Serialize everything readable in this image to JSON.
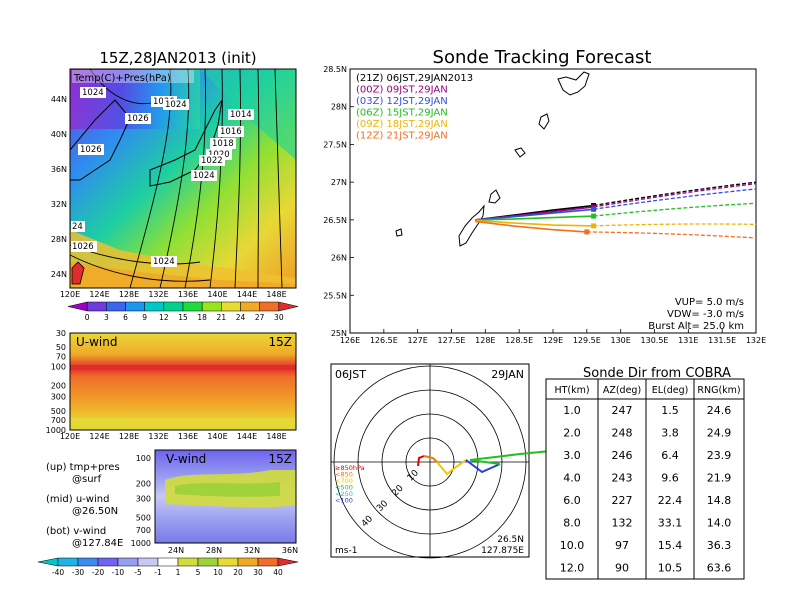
{
  "map_panel": {
    "title": "15Z,28JAN2013 (init)",
    "field_label": "Temp(C)+Pres(hPa)",
    "lat_ticks": [
      "44N",
      "40N",
      "36N",
      "32N",
      "28N",
      "24N"
    ],
    "lon_ticks": [
      "120E",
      "124E",
      "128E",
      "132E",
      "136E",
      "140E",
      "144E",
      "148E"
    ],
    "contour_labels": [
      "1024",
      "1026",
      "1024",
      "1026",
      "1014",
      "1016",
      "1018",
      "1020",
      "1022",
      "1024",
      "1026",
      "24",
      "1026",
      "1024"
    ],
    "colorbar_ticks": [
      "0",
      "3",
      "6",
      "9",
      "12",
      "15",
      "18",
      "21",
      "24",
      "27",
      "30"
    ],
    "colorbar_colors": [
      "#a000c8",
      "#6e3cdc",
      "#3c64f0",
      "#1e96f0",
      "#00c8c8",
      "#00d28c",
      "#1edc3c",
      "#96e61e",
      "#e6dc32",
      "#f0aa28",
      "#f06e28",
      "#e02c2c"
    ]
  },
  "uwind_panel": {
    "title": "U-wind",
    "time": "15Z",
    "y_ticks": [
      "30",
      "50",
      "70",
      "100",
      "200",
      "300",
      "500",
      "700",
      "1000"
    ],
    "x_ticks": [
      "120E",
      "124E",
      "128E",
      "132E",
      "136E",
      "140E",
      "144E",
      "148E"
    ]
  },
  "vwind_panel": {
    "title": "V-wind",
    "time": "15Z",
    "y_ticks": [
      "100",
      "200",
      "300",
      "500",
      "700",
      "1000"
    ],
    "x_ticks": [
      "24N",
      "28N",
      "32N",
      "36N"
    ],
    "colorbar_ticks": [
      "-40",
      "-30",
      "-20",
      "-10",
      "-5",
      "-1",
      "1",
      "5",
      "10",
      "20",
      "30",
      "40"
    ],
    "colorbar_colors": [
      "#00c8c8",
      "#1eb4e6",
      "#3c8cf0",
      "#6e64f0",
      "#96a0f0",
      "#c8c8f0",
      "#ffffff",
      "#d2dc3c",
      "#a0d23c",
      "#e6dc32",
      "#f0aa28",
      "#f06e28",
      "#e02c2c"
    ]
  },
  "legend_notes": {
    "up_line1": "(up) tmp+pres",
    "up_line2": "@surf",
    "mid_line1": "(mid) u-wind",
    "mid_line2": "@26.50N",
    "bot_line1": "(bot) v-wind",
    "bot_line2": "@127.84E"
  },
  "forecast_panel": {
    "title": "Sonde Tracking Forecast",
    "vup": "VUP= 5.0 m/s",
    "vdw": "VDW= -3.0 m/s",
    "burst": "Burst Alt= 25.0 km"
  },
  "polar_panel": {
    "time_label": "06JST",
    "date_label": "29JAN",
    "ring_labels": [
      "10",
      "20",
      "30",
      "40"
    ],
    "lat": "26.5N",
    "lon": "127.875E",
    "unit": "ms-1",
    "level_legend": [
      {
        "label": "≥850hPa",
        "color": "#e00000"
      },
      {
        "label": "<850",
        "color": "#f07800"
      },
      {
        "label": "<700",
        "color": "#f0c800"
      },
      {
        "label": "<500",
        "color": "#20c020"
      },
      {
        "label": "<250",
        "color": "#20c0c0"
      },
      {
        "label": "<100",
        "color": "#2040e0"
      }
    ]
  },
  "table": {
    "title": "Sonde Dir from COBRA",
    "headers": [
      "HT(km)",
      "AZ(deg)",
      "EL(deg)",
      "RNG(km)"
    ],
    "rows": [
      [
        "1.0",
        "247",
        "1.5",
        "24.6"
      ],
      [
        "2.0",
        "248",
        "3.8",
        "24.9"
      ],
      [
        "3.0",
        "246",
        "6.4",
        "23.9"
      ],
      [
        "4.0",
        "243",
        "9.6",
        "21.9"
      ],
      [
        "6.0",
        "227",
        "22.4",
        "14.8"
      ],
      [
        "8.0",
        "132",
        "33.1",
        "14.0"
      ],
      [
        "10.0",
        "97",
        "15.4",
        "36.3"
      ],
      [
        "12.0",
        "90",
        "10.5",
        "63.6"
      ]
    ]
  },
  "chart_data": {
    "type": "line",
    "title": "Sonde Tracking Forecast",
    "xlim": [
      126,
      132
    ],
    "ylim": [
      25,
      28.5
    ],
    "x_ticks": [
      "126E",
      "126.5E",
      "127E",
      "127.5E",
      "128E",
      "128.5E",
      "129E",
      "129.5E",
      "130E",
      "130.5E",
      "131E",
      "131.5E",
      "132E"
    ],
    "y_ticks": [
      "25N",
      "25.5N",
      "26N",
      "26.5N",
      "27N",
      "27.5N",
      "28N",
      "28.5N"
    ],
    "launch_times": [
      {
        "label": "(21Z) 06JST,29JAN2013",
        "color": "#000000"
      },
      {
        "label": "(00Z) 09JST,29JAN",
        "color": "#a0007a"
      },
      {
        "label": "(03Z) 12JST,29JAN",
        "color": "#3050e0"
      },
      {
        "label": "(06Z) 15JST,29JAN",
        "color": "#20c020"
      },
      {
        "label": "(09Z) 18JST,29JAN",
        "color": "#f0b400"
      },
      {
        "label": "(12Z) 21JST,29JAN",
        "color": "#f07020"
      }
    ],
    "series": [
      {
        "name": "(21Z) 06JST,29JAN2013",
        "burst": [
          129.6,
          26.69
        ],
        "end": [
          132.0,
          27.0
        ],
        "path": [
          [
            127.85,
            26.5
          ],
          [
            128.4,
            26.56
          ],
          [
            129.0,
            26.63
          ],
          [
            129.6,
            26.69
          ]
        ]
      },
      {
        "name": "(00Z) 09JST,29JAN",
        "burst": [
          129.6,
          26.67
        ],
        "end": [
          132.0,
          26.98
        ],
        "path": [
          [
            127.85,
            26.5
          ],
          [
            128.4,
            26.55
          ],
          [
            129.0,
            26.61
          ],
          [
            129.6,
            26.67
          ]
        ]
      },
      {
        "name": "(03Z) 12JST,29JAN",
        "burst": [
          129.6,
          26.64
        ],
        "end": [
          132.0,
          26.91
        ],
        "path": [
          [
            127.85,
            26.5
          ],
          [
            128.4,
            26.54
          ],
          [
            129.0,
            26.59
          ],
          [
            129.6,
            26.64
          ]
        ]
      },
      {
        "name": "(06Z) 15JST,29JAN",
        "burst": [
          129.6,
          26.55
        ],
        "end": [
          132.0,
          26.72
        ],
        "path": [
          [
            127.85,
            26.5
          ],
          [
            128.4,
            26.51
          ],
          [
            129.0,
            26.53
          ],
          [
            129.6,
            26.55
          ]
        ]
      },
      {
        "name": "(09Z) 18JST,29JAN",
        "burst": [
          129.6,
          26.42
        ],
        "end": [
          132.0,
          26.44
        ],
        "path": [
          [
            127.85,
            26.49
          ],
          [
            128.4,
            26.46
          ],
          [
            129.0,
            26.43
          ],
          [
            129.6,
            26.42
          ]
        ]
      },
      {
        "name": "(12Z) 21JST,29JAN",
        "burst": [
          129.5,
          26.34
        ],
        "end": [
          132.0,
          26.26
        ],
        "path": [
          [
            127.85,
            26.48
          ],
          [
            128.4,
            26.42
          ],
          [
            129.0,
            26.37
          ],
          [
            129.5,
            26.34
          ]
        ]
      }
    ]
  }
}
